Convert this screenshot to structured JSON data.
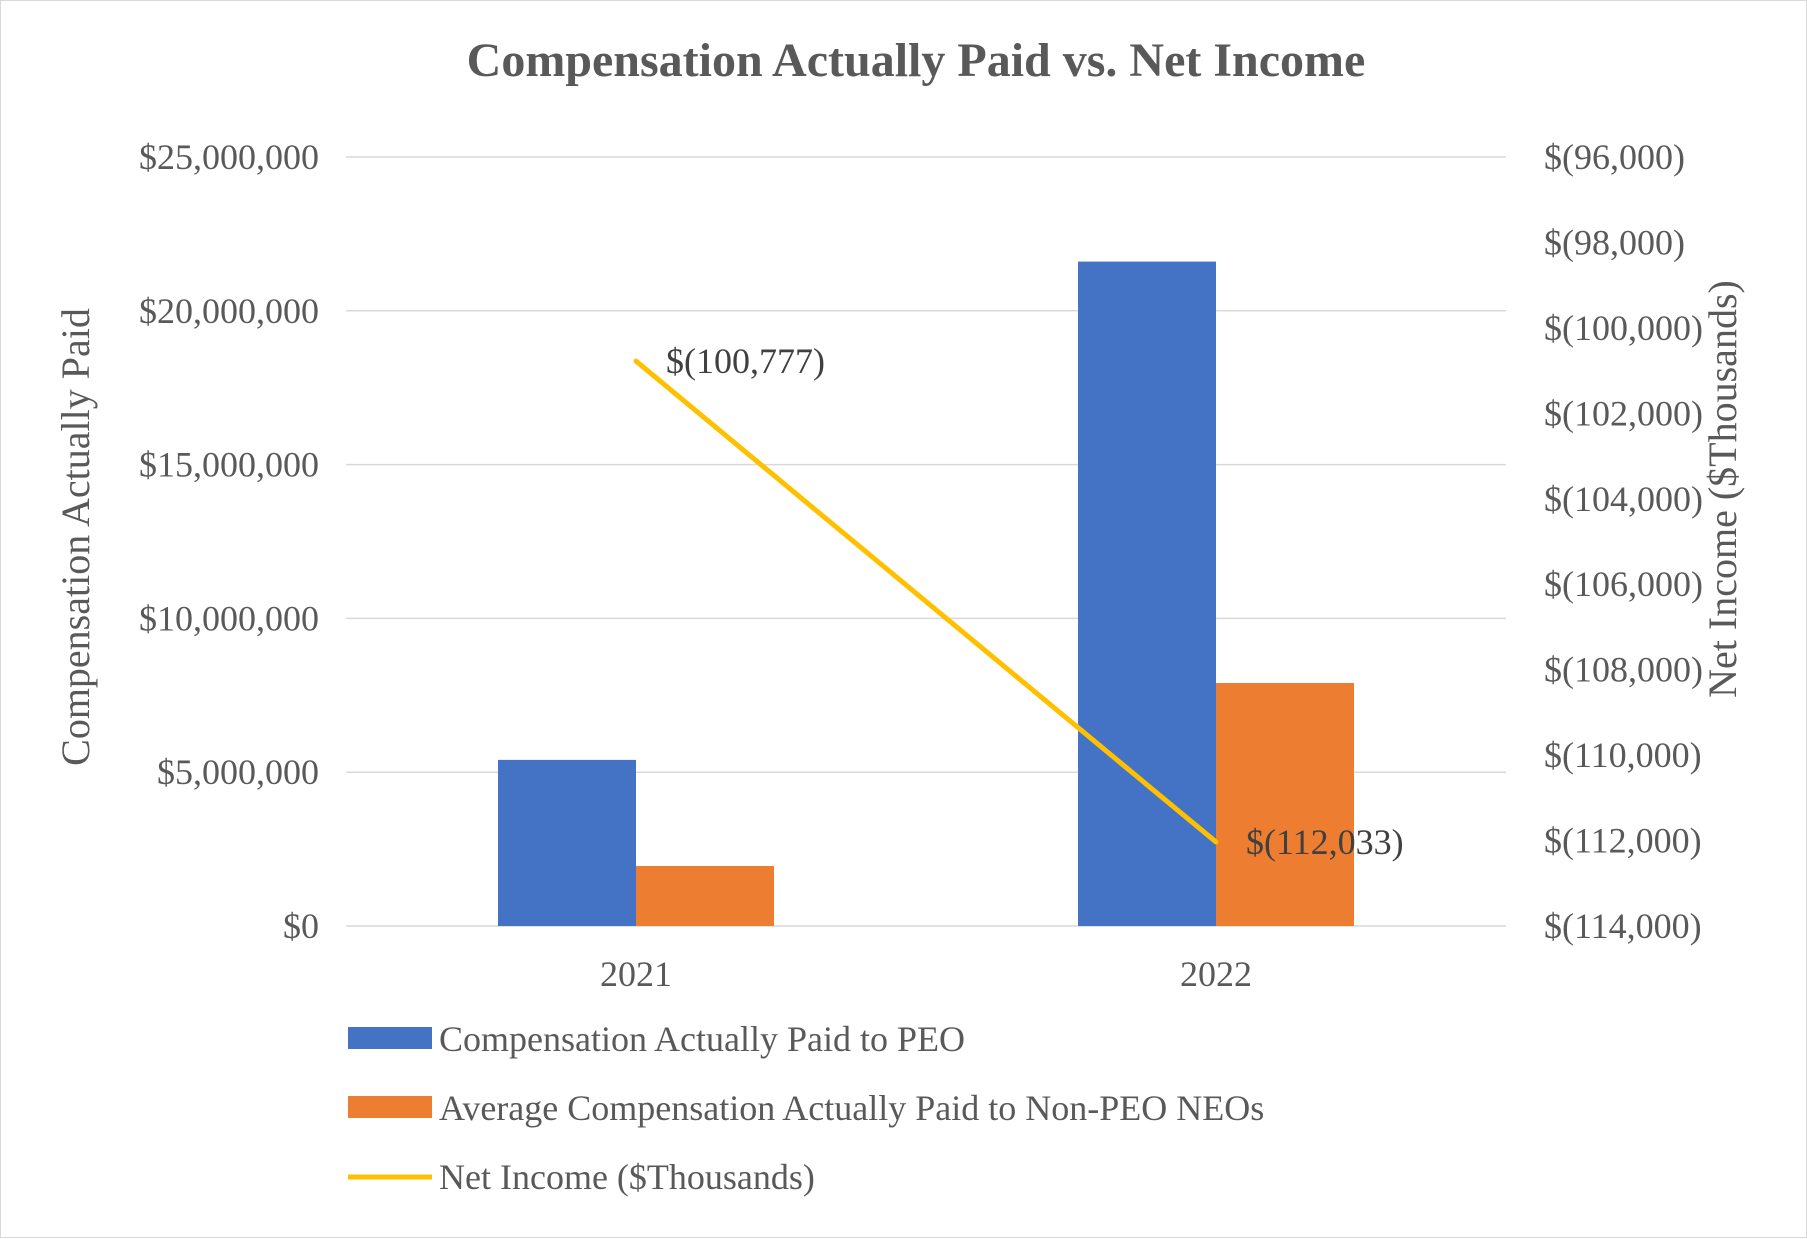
{
  "chart_data": {
    "type": "bar",
    "title": "Compensation Actually Paid vs. Net Income",
    "categories": [
      "2021",
      "2022"
    ],
    "ylabel": "Compensation Actually Paid",
    "y2label": "Net Income ($Thousands)",
    "ylim": [
      0,
      25000000
    ],
    "y2lim": [
      -114000,
      -96000
    ],
    "yticks": [
      0,
      5000000,
      10000000,
      15000000,
      20000000,
      25000000
    ],
    "ytick_labels": [
      "$0",
      "$5,000,000",
      "$10,000,000",
      "$15,000,000",
      "$20,000,000",
      "$25,000,000"
    ],
    "y2ticks": [
      -114000,
      -112000,
      -110000,
      -108000,
      -106000,
      -104000,
      -102000,
      -100000,
      -98000,
      -96000
    ],
    "y2tick_labels": [
      "$(114,000)",
      "$(112,000)",
      "$(110,000)",
      "$(108,000)",
      "$(106,000)",
      "$(104,000)",
      "$(102,000)",
      "$(100,000)",
      "$(98,000)",
      "$(96,000)"
    ],
    "grid": true,
    "legend_position": "bottom",
    "series": [
      {
        "name": "Compensation Actually Paid to PEO",
        "kind": "bar",
        "axis": "left",
        "color": "#4472c4",
        "values": [
          5400000,
          21600000
        ]
      },
      {
        "name": "Average Compensation Actually Paid to Non-PEO NEOs",
        "kind": "bar",
        "axis": "left",
        "color": "#ed7d31",
        "values": [
          1950000,
          7900000
        ]
      },
      {
        "name": "Net Income ($Thousands)",
        "kind": "line",
        "axis": "right",
        "color": "#ffc000",
        "values": [
          -100777,
          -112033
        ],
        "labels": [
          "$(100,777)",
          "$(112,033)"
        ]
      }
    ]
  }
}
